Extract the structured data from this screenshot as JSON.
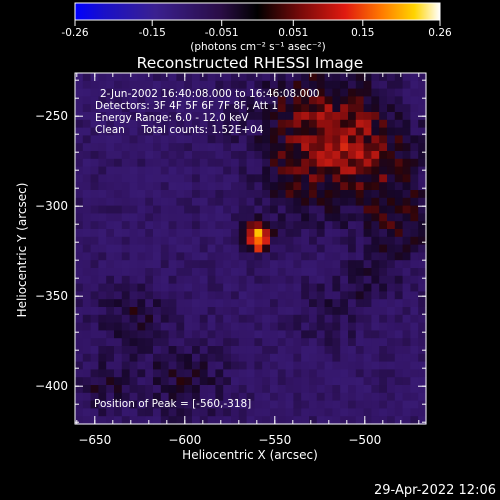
{
  "colorbar": {
    "ticks": [
      "-0.26",
      "-0.15",
      "-0.051",
      "0.051",
      "0.15",
      "0.26"
    ],
    "units": "(photons cm⁻² s⁻¹ asec⁻²)",
    "min": -0.26,
    "max": 0.26
  },
  "chart_data": {
    "type": "heatmap",
    "title": "Reconstructed RHESSI Image",
    "xlabel": "Heliocentric X (arcsec)",
    "ylabel": "Heliocentric Y (arcsec)",
    "xlim": [
      -661,
      -466
    ],
    "ylim": [
      -421,
      -226
    ],
    "xticks": [
      -650,
      -600,
      -550,
      -500
    ],
    "yticks": [
      -250,
      -300,
      -350,
      -400
    ],
    "annotations": [
      "2-Jun-2002 16:40:08.000 to 16:46:08.000",
      "Detectors: 3F 4F 5F 6F 7F 8F, Att 1",
      "Energy Range: 6.0 - 12.0 keV",
      "Clean     Total counts: 1.52E+04",
      "Position of Peak = [-560,-318]"
    ],
    "peak": {
      "x": -560,
      "y": -318
    },
    "colormap": [
      "#0000ff",
      "#2a0a6e",
      "#3c1c7c",
      "#060010",
      "#c81414",
      "#ff6a00",
      "#ffd200",
      "#ffffff"
    ]
  },
  "timestamp": "29-Apr-2022 12:06"
}
